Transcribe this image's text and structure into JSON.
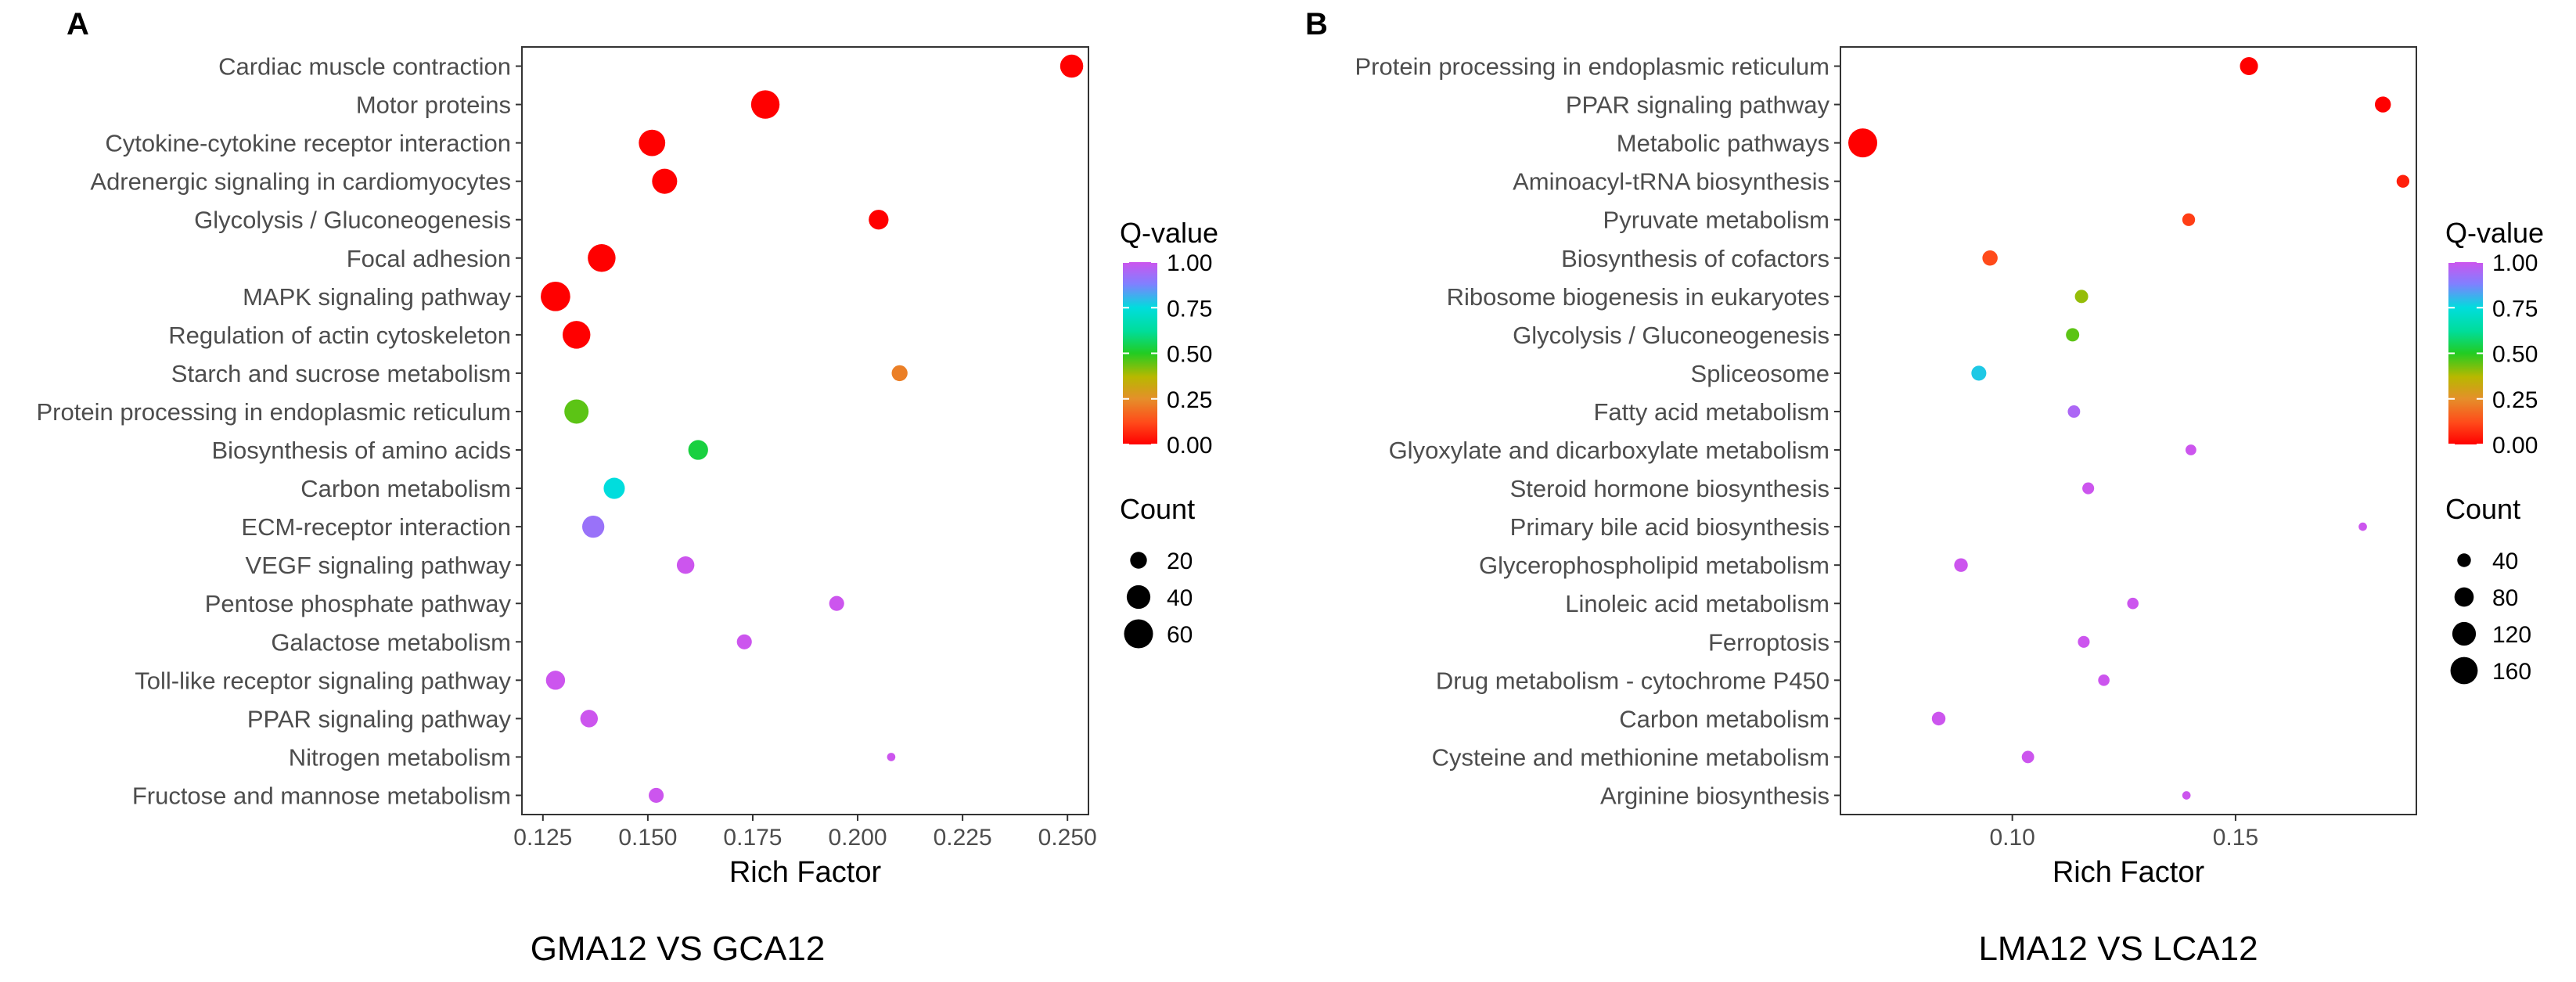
{
  "chart_data": [
    {
      "type": "scatter",
      "panel_label": "A",
      "caption": "GMA12 VS GCA12",
      "xlabel": "Rich Factor",
      "xlim": [
        0.12,
        0.255
      ],
      "xticks": [
        0.125,
        0.15,
        0.175,
        0.2,
        0.225,
        0.25
      ],
      "xtick_labels": [
        "0.125",
        "0.150",
        "0.175",
        "0.200",
        "0.225",
        "0.250"
      ],
      "color_legend": {
        "title": "Q-value",
        "ticks": [
          "1.00",
          "0.75",
          "0.50",
          "0.25",
          "0.00"
        ],
        "tick_values": [
          1.0,
          0.75,
          0.5,
          0.25,
          0.0
        ]
      },
      "size_legend": {
        "title": "Count",
        "labels": [
          "20",
          "40",
          "60"
        ],
        "values": [
          20,
          40,
          60
        ],
        "max": 70
      },
      "points": [
        {
          "pathway": "Cardiac muscle contraction",
          "x": 0.251,
          "count": 38,
          "q": 0.0
        },
        {
          "pathway": "Motor proteins",
          "x": 0.178,
          "count": 58,
          "q": 0.0
        },
        {
          "pathway": "Cytokine-cytokine receptor interaction",
          "x": 0.151,
          "count": 50,
          "q": 0.0
        },
        {
          "pathway": "Adrenergic signaling in cardiomyocytes",
          "x": 0.154,
          "count": 45,
          "q": 0.0
        },
        {
          "pathway": "Glycolysis / Gluconeogenesis",
          "x": 0.205,
          "count": 28,
          "q": 0.0
        },
        {
          "pathway": "Focal adhesion",
          "x": 0.139,
          "count": 55,
          "q": 0.0
        },
        {
          "pathway": "MAPK signaling pathway",
          "x": 0.128,
          "count": 62,
          "q": 0.0
        },
        {
          "pathway": "Regulation of actin cytoskeleton",
          "x": 0.133,
          "count": 55,
          "q": 0.0
        },
        {
          "pathway": "Starch and sucrose metabolism",
          "x": 0.21,
          "count": 18,
          "q": 0.22
        },
        {
          "pathway": "Protein processing in endoplasmic reticulum",
          "x": 0.133,
          "count": 42,
          "q": 0.45
        },
        {
          "pathway": "Biosynthesis of amino acids",
          "x": 0.162,
          "count": 28,
          "q": 0.53
        },
        {
          "pathway": "Carbon metabolism",
          "x": 0.142,
          "count": 32,
          "q": 0.75
        },
        {
          "pathway": "ECM-receptor interaction",
          "x": 0.137,
          "count": 35,
          "q": 0.92
        },
        {
          "pathway": "VEGF signaling pathway",
          "x": 0.159,
          "count": 22,
          "q": 1.0
        },
        {
          "pathway": "Pentose phosphate pathway",
          "x": 0.195,
          "count": 16,
          "q": 1.0
        },
        {
          "pathway": "Galactose metabolism",
          "x": 0.173,
          "count": 16,
          "q": 1.0
        },
        {
          "pathway": "Toll-like receptor signaling pathway",
          "x": 0.128,
          "count": 26,
          "q": 1.0
        },
        {
          "pathway": "PPAR signaling pathway",
          "x": 0.136,
          "count": 22,
          "q": 1.0
        },
        {
          "pathway": "Nitrogen metabolism",
          "x": 0.208,
          "count": 5,
          "q": 1.0
        },
        {
          "pathway": "Fructose and mannose metabolism",
          "x": 0.152,
          "count": 16,
          "q": 1.0
        }
      ]
    },
    {
      "type": "scatter",
      "panel_label": "B",
      "caption": "LMA12 VS LCA12",
      "xlabel": "Rich Factor",
      "xlim": [
        0.0615,
        0.1905
      ],
      "xticks": [
        0.1,
        0.15
      ],
      "xtick_labels": [
        "0.10",
        "0.15"
      ],
      "color_legend": {
        "title": "Q-value",
        "ticks": [
          "1.00",
          "0.75",
          "0.50",
          "0.25",
          "0.00"
        ],
        "tick_values": [
          1.0,
          0.75,
          0.5,
          0.25,
          0.0
        ]
      },
      "size_legend": {
        "title": "Count",
        "labels": [
          "40",
          "80",
          "120",
          "160"
        ],
        "values": [
          40,
          80,
          120,
          160
        ],
        "max": 190
      },
      "points": [
        {
          "pathway": "Protein processing in endoplasmic reticulum",
          "x": 0.153,
          "count": 70,
          "q": 0.0
        },
        {
          "pathway": "PPAR signaling pathway",
          "x": 0.183,
          "count": 55,
          "q": 0.0
        },
        {
          "pathway": "Metabolic pathways",
          "x": 0.0665,
          "count": 180,
          "q": 0.0
        },
        {
          "pathway": "Aminoacyl-tRNA biosynthesis",
          "x": 0.1875,
          "count": 35,
          "q": 0.05
        },
        {
          "pathway": "Pyruvate metabolism",
          "x": 0.1395,
          "count": 35,
          "q": 0.1
        },
        {
          "pathway": "Biosynthesis of cofactors",
          "x": 0.095,
          "count": 50,
          "q": 0.12
        },
        {
          "pathway": "Ribosome biogenesis in eukaryotes",
          "x": 0.1155,
          "count": 38,
          "q": 0.4
        },
        {
          "pathway": "Glycolysis / Gluconeogenesis",
          "x": 0.1135,
          "count": 38,
          "q": 0.45
        },
        {
          "pathway": "Spliceosome",
          "x": 0.0925,
          "count": 48,
          "q": 0.78
        },
        {
          "pathway": "Fatty acid metabolism",
          "x": 0.1138,
          "count": 33,
          "q": 0.95
        },
        {
          "pathway": "Glyoxylate and dicarboxylate metabolism",
          "x": 0.14,
          "count": 25,
          "q": 1.0
        },
        {
          "pathway": "Steroid hormone biosynthesis",
          "x": 0.117,
          "count": 30,
          "q": 1.0
        },
        {
          "pathway": "Primary bile acid biosynthesis",
          "x": 0.1785,
          "count": 15,
          "q": 1.0
        },
        {
          "pathway": "Glycerophospholipid metabolism",
          "x": 0.0885,
          "count": 40,
          "q": 1.0
        },
        {
          "pathway": "Linoleic acid metabolism",
          "x": 0.127,
          "count": 28,
          "q": 1.0
        },
        {
          "pathway": "Ferroptosis",
          "x": 0.116,
          "count": 30,
          "q": 1.0
        },
        {
          "pathway": "Drug metabolism - cytochrome P450",
          "x": 0.1205,
          "count": 28,
          "q": 1.0
        },
        {
          "pathway": "Carbon metabolism",
          "x": 0.0835,
          "count": 40,
          "q": 1.0
        },
        {
          "pathway": "Cysteine and methionine metabolism",
          "x": 0.1035,
          "count": 33,
          "q": 1.0
        },
        {
          "pathway": "Arginine biosynthesis",
          "x": 0.139,
          "count": 15,
          "q": 1.0
        }
      ]
    }
  ]
}
